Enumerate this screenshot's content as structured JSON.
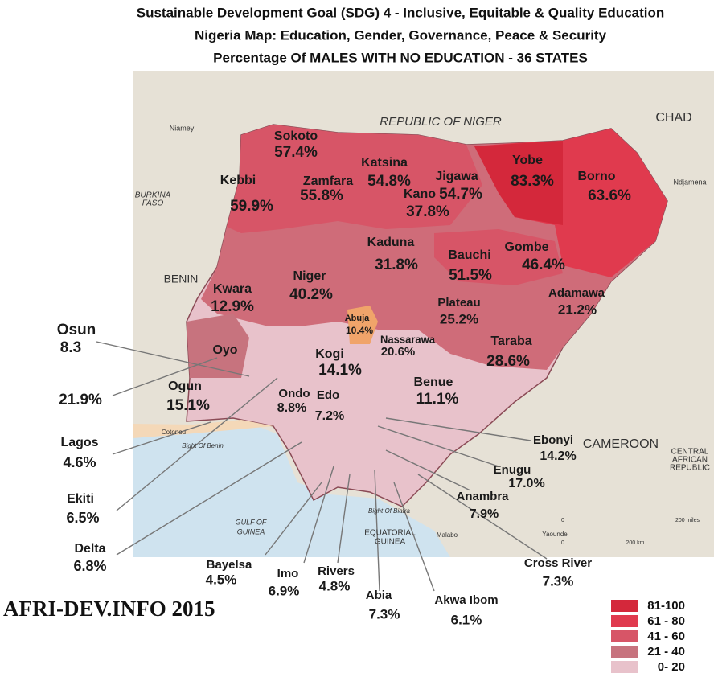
{
  "title": [
    "Sustainable Development Goal (SDG) 4 - Inclusive, Equitable & Quality Education",
    "Nigeria Map: Education, Gender, Governance, Peace & Security",
    "Percentage Of MALES WITH NO EDUCATION - 36 STATES"
  ],
  "states": [
    {
      "name": "Sokoto",
      "value": "57.4%"
    },
    {
      "name": "Kebbi",
      "value": "59.9%"
    },
    {
      "name": "Zamfara",
      "value": "55.8%"
    },
    {
      "name": "Katsina",
      "value": "54.8%"
    },
    {
      "name": "Jigawa",
      "value": "54.7%"
    },
    {
      "name": "Kano",
      "value": "37.8%"
    },
    {
      "name": "Yobe",
      "value": "83.3%"
    },
    {
      "name": "Borno",
      "value": "63.6%"
    },
    {
      "name": "Kaduna",
      "value": "31.8%"
    },
    {
      "name": "Bauchi",
      "value": "51.5%"
    },
    {
      "name": "Gombe",
      "value": "46.4%"
    },
    {
      "name": "Niger",
      "value": "40.2%"
    },
    {
      "name": "Kwara",
      "value": "12.9%"
    },
    {
      "name": "Adamawa",
      "value": "21.2%"
    },
    {
      "name": "Plateau",
      "value": "25.2%"
    },
    {
      "name": "Abuja",
      "value": "10.4%"
    },
    {
      "name": "Nassarawa",
      "value": "20.6%"
    },
    {
      "name": "Osun",
      "value": "8.3"
    },
    {
      "name": "Oyo",
      "value": "21.9%"
    },
    {
      "name": "Kogi",
      "value": "14.1%"
    },
    {
      "name": "Taraba",
      "value": "28.6%"
    },
    {
      "name": "Benue",
      "value": "11.1%"
    },
    {
      "name": "Ogun",
      "value": "15.1%"
    },
    {
      "name": "Ondo",
      "value": "8.8%"
    },
    {
      "name": "Edo",
      "value": "7.2%"
    },
    {
      "name": "Ebonyi",
      "value": "14.2%"
    },
    {
      "name": "Lagos",
      "value": "4.6%"
    },
    {
      "name": "Enugu",
      "value": "17.0%"
    },
    {
      "name": "Anambra",
      "value": "7.9%"
    },
    {
      "name": "Ekiti",
      "value": "6.5%"
    },
    {
      "name": "Delta",
      "value": "6.8%"
    },
    {
      "name": "Bayelsa",
      "value": "4.5%"
    },
    {
      "name": "Imo",
      "value": "6.9%"
    },
    {
      "name": "Rivers",
      "value": "4.8%"
    },
    {
      "name": "Cross River",
      "value": "7.3%"
    },
    {
      "name": "Abia",
      "value": "7.3%"
    },
    {
      "name": "Akwa Ibom",
      "value": "6.1%"
    }
  ],
  "geography": [
    "REPUBLIC OF NIGER",
    "CHAD",
    "Niamey",
    "BURKINA",
    "FASO",
    "BENIN",
    "Ndjamena",
    "CAMEROON",
    "CENTRAL",
    "AFRICAN",
    "REPUBLIC",
    "Cotonou",
    "Bight Of Benin",
    "GULF OF",
    "GUINEA",
    "Bight Of Biafra",
    "EQUATORIAL",
    "GUINEA",
    "Malabo",
    "Yaounde",
    "0",
    "200 km",
    "0",
    "200 miles"
  ],
  "credit": "AFRI-DEV.INFO 2015",
  "legend": [
    {
      "label": "81-100",
      "color": "#d4283b"
    },
    {
      "label": "61 - 80",
      "color": "#e03a4e"
    },
    {
      "label": "41 - 60",
      "color": "#d75567"
    },
    {
      "label": "21 - 40",
      "color": "#c7737e"
    },
    {
      "label": "0- 20",
      "color": "#e8c2cb"
    }
  ]
}
